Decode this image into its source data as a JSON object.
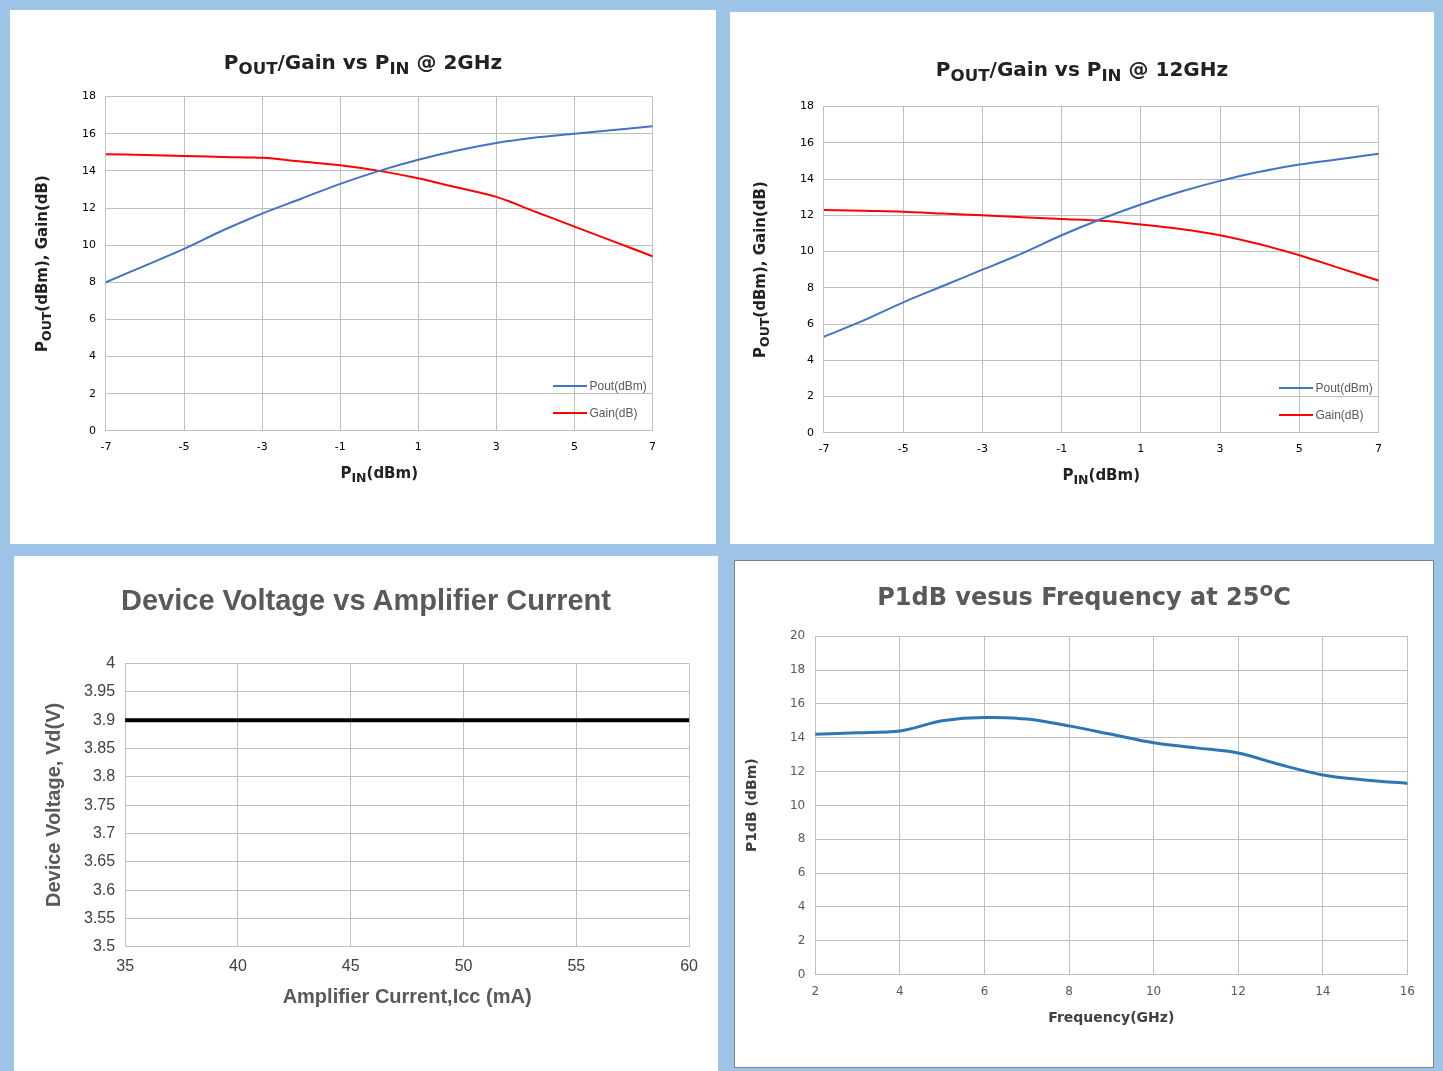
{
  "chart_data": [
    {
      "type": "line",
      "title": "P$_{OUT}$/Gain vs P$_{IN}$ @ 2GHz",
      "xlabel": "P$_{IN}$(dBm)",
      "ylabel": "P$_{OUT}$(dBm), Gain(dB)",
      "x": [
        -7,
        -6,
        -5,
        -4,
        -3,
        -2,
        -1,
        0,
        1,
        2,
        3,
        4,
        5,
        6,
        7
      ],
      "series": [
        {
          "name": "Pout(dBm)",
          "color": "#4472c4",
          "values": [
            8.0,
            8.9,
            9.8,
            10.8,
            11.7,
            12.5,
            13.3,
            14.0,
            14.6,
            15.1,
            15.5,
            15.8,
            16.0,
            16.2,
            16.4
          ]
        },
        {
          "name": "Gain(dB)",
          "color": "#ff0000",
          "values": [
            14.9,
            14.85,
            14.8,
            14.75,
            14.7,
            14.5,
            14.3,
            14.0,
            13.6,
            13.1,
            12.6,
            11.8,
            11.0,
            10.2,
            9.4
          ]
        }
      ],
      "xlim": [
        -7,
        7
      ],
      "xticks": [
        -7,
        -5,
        -3,
        -1,
        1,
        3,
        5,
        7
      ],
      "ylim": [
        0,
        18
      ],
      "yticks": [
        0,
        2,
        4,
        6,
        8,
        10,
        12,
        14,
        16,
        18
      ],
      "grid": true,
      "legend": "bottom right",
      "marker": "none",
      "line_style": "solid"
    },
    {
      "type": "line",
      "title": "P$_{OUT}$/Gain vs P$_{IN}$ @ 12GHz",
      "xlabel": "P$_{IN}$(dBm)",
      "ylabel": "P$_{OUT}$(dBm), Gain(dB)",
      "x": [
        -7,
        -6,
        -5,
        -4,
        -3,
        -2,
        -1,
        0,
        1,
        2,
        3,
        4,
        5,
        6,
        7
      ],
      "series": [
        {
          "name": "Pout(dBm)",
          "color": "#4472c4",
          "values": [
            5.3,
            6.2,
            7.2,
            8.1,
            9.0,
            9.9,
            10.9,
            11.8,
            12.6,
            13.3,
            13.9,
            14.4,
            14.8,
            15.1,
            15.4
          ]
        },
        {
          "name": "Gain(dB)",
          "color": "#ff0000",
          "values": [
            12.3,
            12.25,
            12.2,
            12.1,
            12.0,
            11.9,
            11.8,
            11.7,
            11.5,
            11.25,
            10.9,
            10.4,
            9.8,
            9.1,
            8.4
          ]
        }
      ],
      "xlim": [
        -7,
        7
      ],
      "xticks": [
        -7,
        -5,
        -3,
        -1,
        1,
        3,
        5,
        7
      ],
      "ylim": [
        0,
        18
      ],
      "yticks": [
        0,
        2,
        4,
        6,
        8,
        10,
        12,
        14,
        16,
        18
      ],
      "grid": true,
      "legend": "bottom right",
      "marker": "none",
      "line_style": "solid"
    },
    {
      "type": "line",
      "title": "Device Voltage vs Amplifier Current",
      "xlabel": "Amplifier Current,Icc (mA)",
      "ylabel": "Device Voltage, Vd(V)",
      "x": [
        35,
        60
      ],
      "values": [
        3.9,
        3.9
      ],
      "color": "#000000",
      "xlim": [
        35,
        60
      ],
      "xticks": [
        35,
        40,
        45,
        50,
        55,
        60
      ],
      "ylim": [
        3.5,
        4
      ],
      "yticks": [
        3.5,
        3.55,
        3.6,
        3.65,
        3.7,
        3.75,
        3.8,
        3.85,
        3.9,
        3.95,
        4
      ],
      "grid": true,
      "marker": "none",
      "line_style": "solid"
    },
    {
      "type": "line",
      "title": "P1dB vesus Frequency at 25$^{o}$C",
      "xlabel": "Frequency(GHz)",
      "ylabel": "P1dB (dBm)",
      "x": [
        2,
        3,
        4,
        5,
        6,
        6.2,
        7,
        8,
        9,
        10,
        11,
        12,
        13,
        14,
        15,
        16
      ],
      "values": [
        14.2,
        14.3,
        14.4,
        15.0,
        15.2,
        15.2,
        15.1,
        14.7,
        14.2,
        13.7,
        13.4,
        13.1,
        12.4,
        11.8,
        11.5,
        11.3
      ],
      "color": "#2e75b6",
      "xlim": [
        2,
        16
      ],
      "xticks": [
        2,
        4,
        6,
        8,
        10,
        12,
        14,
        16
      ],
      "ylim": [
        0,
        20
      ],
      "yticks": [
        0,
        2,
        4,
        6,
        8,
        10,
        12,
        14,
        16,
        18,
        20
      ],
      "grid": true,
      "marker": "none",
      "line_style": "solid"
    }
  ]
}
